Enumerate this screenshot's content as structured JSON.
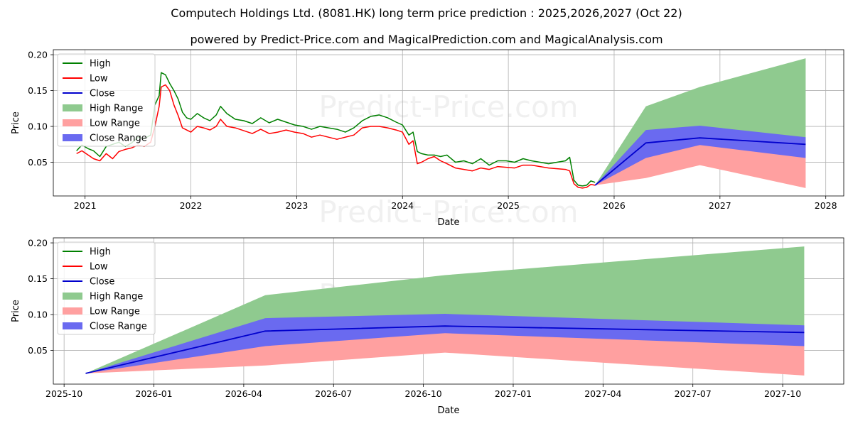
{
  "titles": {
    "line1": "Computech Holdings Ltd. (8081.HK) long term price prediction : 2025,2026,2027 (Oct 22)",
    "line2": "powered by Predict-Price.com and MagicalPrediction.com and MagicalAnalysis.com"
  },
  "watermark": "Predict-Price.com",
  "colors": {
    "high": "#008000",
    "low": "#ff0000",
    "close": "#0000cd",
    "high_range": "#8fca8f",
    "low_range": "#ffa0a0",
    "close_range": "#6a6af0",
    "grid": "#b0b0b0"
  },
  "chart_data": [
    {
      "id": "top",
      "type": "line",
      "title": "Computech Holdings Ltd. (8081.HK) long term price prediction : 2025,2026,2027 (Oct 22)",
      "xlabel": "Date",
      "ylabel": "Price",
      "xlim": [
        2020.7,
        2028.17
      ],
      "ylim": [
        0.003,
        0.207
      ],
      "xticks": [
        2021,
        2022,
        2023,
        2024,
        2025,
        2026,
        2027,
        2028
      ],
      "xtick_labels": [
        "2021",
        "2022",
        "2023",
        "2024",
        "2025",
        "2026",
        "2027",
        "2028"
      ],
      "yticks": [
        0.05,
        0.1,
        0.15,
        0.2
      ],
      "ytick_labels": [
        "0.05",
        "0.10",
        "0.15",
        "0.20"
      ],
      "grid": true,
      "legend_position": "top-left",
      "legend": [
        "High",
        "Low",
        "Close",
        "High Range",
        "Low Range",
        "Close Range"
      ],
      "history_high": {
        "x": [
          2020.92,
          2020.97,
          2021.03,
          2021.08,
          2021.14,
          2021.2,
          2021.26,
          2021.32,
          2021.38,
          2021.44,
          2021.5,
          2021.56,
          2021.62,
          2021.66,
          2021.7,
          2021.72,
          2021.76,
          2021.8,
          2021.84,
          2021.88,
          2021.92,
          2021.96,
          2022.0,
          2022.06,
          2022.12,
          2022.18,
          2022.24,
          2022.28,
          2022.34,
          2022.42,
          2022.5,
          2022.58,
          2022.66,
          2022.74,
          2022.82,
          2022.9,
          2022.98,
          2023.06,
          2023.14,
          2023.22,
          2023.3,
          2023.38,
          2023.46,
          2023.54,
          2023.62,
          2023.7,
          2023.78,
          2023.86,
          2023.94,
          2024.0,
          2024.06,
          2024.1,
          2024.14,
          2024.18,
          2024.24,
          2024.3,
          2024.36,
          2024.42,
          2024.5,
          2024.58,
          2024.66,
          2024.74,
          2024.82,
          2024.9,
          2024.98,
          2025.06,
          2025.14,
          2025.22,
          2025.3,
          2025.38,
          2025.46,
          2025.54,
          2025.58,
          2025.62,
          2025.66,
          2025.7,
          2025.74,
          2025.78,
          2025.82
        ],
        "y": [
          0.066,
          0.074,
          0.069,
          0.066,
          0.058,
          0.072,
          0.075,
          0.078,
          0.072,
          0.077,
          0.085,
          0.083,
          0.088,
          0.13,
          0.143,
          0.175,
          0.172,
          0.16,
          0.15,
          0.138,
          0.12,
          0.112,
          0.11,
          0.118,
          0.112,
          0.108,
          0.116,
          0.128,
          0.118,
          0.11,
          0.108,
          0.104,
          0.112,
          0.105,
          0.11,
          0.106,
          0.102,
          0.1,
          0.096,
          0.1,
          0.098,
          0.096,
          0.092,
          0.098,
          0.108,
          0.114,
          0.116,
          0.112,
          0.106,
          0.102,
          0.088,
          0.092,
          0.065,
          0.062,
          0.06,
          0.06,
          0.058,
          0.06,
          0.05,
          0.052,
          0.048,
          0.055,
          0.046,
          0.052,
          0.052,
          0.05,
          0.055,
          0.052,
          0.05,
          0.048,
          0.05,
          0.052,
          0.057,
          0.025,
          0.018,
          0.017,
          0.018,
          0.024,
          0.022
        ]
      },
      "history_low": {
        "x": [
          2020.92,
          2020.97,
          2021.03,
          2021.08,
          2021.14,
          2021.2,
          2021.26,
          2021.32,
          2021.38,
          2021.44,
          2021.5,
          2021.56,
          2021.62,
          2021.66,
          2021.7,
          2021.72,
          2021.76,
          2021.8,
          2021.84,
          2021.88,
          2021.92,
          2021.96,
          2022.0,
          2022.06,
          2022.12,
          2022.18,
          2022.24,
          2022.28,
          2022.34,
          2022.42,
          2022.5,
          2022.58,
          2022.66,
          2022.74,
          2022.82,
          2022.9,
          2022.98,
          2023.06,
          2023.14,
          2023.22,
          2023.3,
          2023.38,
          2023.46,
          2023.54,
          2023.62,
          2023.7,
          2023.78,
          2023.86,
          2023.94,
          2024.0,
          2024.06,
          2024.1,
          2024.14,
          2024.18,
          2024.24,
          2024.3,
          2024.36,
          2024.42,
          2024.5,
          2024.58,
          2024.66,
          2024.74,
          2024.82,
          2024.9,
          2024.98,
          2025.06,
          2025.14,
          2025.22,
          2025.3,
          2025.38,
          2025.46,
          2025.54,
          2025.58,
          2025.62,
          2025.66,
          2025.7,
          2025.74,
          2025.78,
          2025.82
        ],
        "y": [
          0.062,
          0.066,
          0.06,
          0.055,
          0.052,
          0.062,
          0.055,
          0.065,
          0.068,
          0.07,
          0.074,
          0.072,
          0.078,
          0.1,
          0.128,
          0.155,
          0.158,
          0.15,
          0.13,
          0.115,
          0.098,
          0.095,
          0.092,
          0.1,
          0.098,
          0.095,
          0.1,
          0.11,
          0.1,
          0.098,
          0.094,
          0.09,
          0.096,
          0.09,
          0.092,
          0.095,
          0.092,
          0.09,
          0.085,
          0.088,
          0.085,
          0.082,
          0.085,
          0.088,
          0.098,
          0.1,
          0.1,
          0.098,
          0.095,
          0.092,
          0.075,
          0.08,
          0.048,
          0.05,
          0.055,
          0.058,
          0.052,
          0.048,
          0.042,
          0.04,
          0.038,
          0.042,
          0.04,
          0.044,
          0.043,
          0.042,
          0.046,
          0.046,
          0.044,
          0.042,
          0.041,
          0.04,
          0.038,
          0.02,
          0.015,
          0.014,
          0.015,
          0.019,
          0.018
        ]
      },
      "prediction": {
        "x": [
          2025.82,
          2026.3,
          2026.81,
          2027.81
        ],
        "high_range": [
          0.018,
          0.128,
          0.155,
          0.195
        ],
        "low_range": [
          0.018,
          0.028,
          0.046,
          0.014
        ],
        "close_upper": [
          0.018,
          0.095,
          0.101,
          0.085
        ],
        "close_lower": [
          0.018,
          0.056,
          0.074,
          0.056
        ],
        "close": [
          0.018,
          0.077,
          0.084,
          0.075
        ]
      }
    },
    {
      "id": "bottom",
      "type": "line",
      "xlabel": "Date",
      "ylabel": "Price",
      "xlim": [
        2025.72,
        2027.92
      ],
      "ylim": [
        0.003,
        0.207
      ],
      "xticks": [
        2025.75,
        2026.0,
        2026.25,
        2026.5,
        2026.75,
        2027.0,
        2027.25,
        2027.5,
        2027.75
      ],
      "xtick_labels": [
        "2025-10",
        "2026-01",
        "2026-04",
        "2026-07",
        "2026-10",
        "2027-01",
        "2027-04",
        "2027-07",
        "2027-10"
      ],
      "yticks": [
        0.05,
        0.1,
        0.15,
        0.2
      ],
      "ytick_labels": [
        "0.05",
        "0.10",
        "0.15",
        "0.20"
      ],
      "grid": true,
      "legend_position": "top-left",
      "legend": [
        "High",
        "Low",
        "Close",
        "High Range",
        "Low Range",
        "Close Range"
      ],
      "prediction": {
        "x": [
          2025.81,
          2026.31,
          2026.81,
          2027.81
        ],
        "high_range": [
          0.018,
          0.127,
          0.155,
          0.195
        ],
        "low_range": [
          0.018,
          0.029,
          0.047,
          0.015
        ],
        "close_upper": [
          0.018,
          0.095,
          0.101,
          0.085
        ],
        "close_lower": [
          0.018,
          0.056,
          0.074,
          0.056
        ],
        "close": [
          0.018,
          0.077,
          0.084,
          0.075
        ]
      }
    }
  ]
}
